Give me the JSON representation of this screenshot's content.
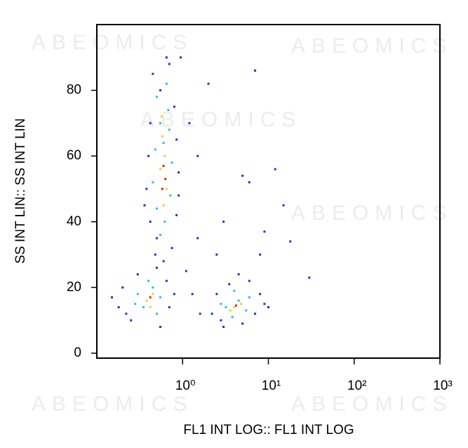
{
  "chart_data": {
    "type": "scatter",
    "x_label": "FL1 INT LOG:: FL1 INT LOG",
    "y_label": "SS INT LIN:: SS INT LIN",
    "watermarks": [
      "ABEOMICS",
      "ABEOMICS",
      "ABEOMICS",
      "ABEOMICS",
      "ABEOMICS",
      "ABEOMICS"
    ],
    "x_log": true,
    "xlim": [
      0.1,
      1000
    ],
    "xticks": [
      {
        "value": 1,
        "label": "10⁰"
      },
      {
        "value": 10,
        "label": "10¹"
      },
      {
        "value": 100,
        "label": "10²"
      },
      {
        "value": 1000,
        "label": "10³"
      }
    ],
    "ylim": [
      -1.5,
      100
    ],
    "yticks": [
      0,
      20,
      40,
      60,
      80
    ],
    "series": [
      {
        "color": "#1f2fd0",
        "x": [
          0.45,
          0.7,
          0.55,
          0.8,
          0.42,
          0.85,
          0.4,
          0.38,
          0.9,
          0.42,
          0.85,
          0.5,
          0.75,
          0.6,
          0.65,
          0.48,
          0.9,
          0.36,
          0.18,
          0.2,
          0.25,
          0.3,
          0.55,
          0.7,
          0.65,
          0.22,
          0.8,
          0.15,
          0.5,
          2.2,
          2.5,
          3,
          5,
          7,
          8,
          9,
          6,
          3.5,
          2.8,
          10,
          4.5,
          1.2,
          1.5,
          2,
          7,
          12,
          5,
          6,
          9,
          15,
          18,
          30,
          1.5,
          2.5,
          1.1,
          8,
          3,
          0.95,
          1.3,
          1.6
        ],
        "y": [
          85,
          88,
          80,
          75,
          70,
          65,
          60,
          50,
          55,
          40,
          42,
          35,
          32,
          28,
          90,
          30,
          48,
          45,
          14,
          20,
          10,
          24,
          8,
          14,
          22,
          12,
          18,
          17,
          26,
          12,
          18,
          8,
          9,
          12,
          18,
          15,
          22,
          21,
          10,
          14,
          24,
          70,
          60,
          82,
          86,
          56,
          54,
          52,
          37,
          45,
          34,
          23,
          35,
          30,
          25,
          30,
          40,
          90,
          18,
          12
        ]
      },
      {
        "color": "#21c4e8",
        "x": [
          0.5,
          0.65,
          0.55,
          0.7,
          0.48,
          0.75,
          0.45,
          0.72,
          0.5,
          0.62,
          0.55,
          0.68,
          0.6,
          0.3,
          0.35,
          0.45,
          0.5,
          0.4,
          0.28,
          0.55,
          3.2,
          4.5,
          5.5,
          3.8,
          6,
          4,
          2.8
        ],
        "y": [
          78,
          82,
          70,
          68,
          62,
          58,
          52,
          48,
          44,
          40,
          36,
          74,
          64,
          18,
          14,
          20,
          12,
          22,
          15,
          17,
          14,
          16,
          13,
          11,
          17,
          19,
          15
        ]
      },
      {
        "color": "#e8d820",
        "x": [
          0.58,
          0.62,
          0.55,
          0.65,
          0.6,
          0.57,
          0.38,
          0.45,
          0.42,
          4,
          4.8,
          3.6
        ],
        "y": [
          66,
          60,
          56,
          50,
          45,
          72,
          16,
          18,
          14,
          14,
          15,
          13
        ]
      },
      {
        "color": "#e02010",
        "x": [
          0.6,
          0.63,
          0.58,
          0.42,
          4.2
        ],
        "y": [
          57,
          53,
          50,
          17,
          14.5
        ]
      }
    ]
  }
}
